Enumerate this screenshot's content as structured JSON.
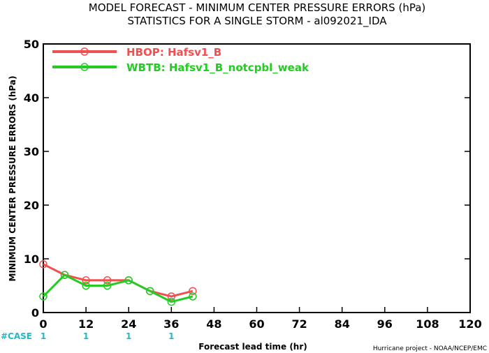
{
  "chart_data": {
    "type": "line",
    "title_line1": "MODEL FORECAST - MINIMUM CENTER PRESSURE ERRORS (hPa)",
    "title_line2": "STATISTICS FOR A SINGLE STORM - al092021_IDA",
    "xlabel": "Forecast lead time (hr)",
    "ylabel": "MINIMUM CENTER PRESSURE ERRORS (hPa)",
    "xlim": [
      0,
      120
    ],
    "ylim": [
      0,
      50
    ],
    "x_ticks": [
      0,
      12,
      24,
      36,
      48,
      60,
      72,
      84,
      96,
      108,
      120
    ],
    "y_ticks": [
      0,
      10,
      20,
      30,
      40,
      50
    ],
    "grid": false,
    "legend_position": "top-left",
    "series": [
      {
        "name": "HBOP: Hafsv1_B",
        "color": "#f05050",
        "x": [
          0,
          6,
          12,
          18,
          24,
          30,
          36,
          42
        ],
        "y": [
          9,
          7,
          6,
          6,
          6,
          4,
          3,
          4
        ]
      },
      {
        "name": "WBTB: Hafsv1_B_notcpbl_weak",
        "color": "#22cc22",
        "x": [
          0,
          6,
          12,
          18,
          24,
          30,
          36,
          42
        ],
        "y": [
          3,
          7,
          5,
          5,
          6,
          4,
          2,
          3
        ]
      }
    ],
    "case_label": "#CASE",
    "case_color": "#22b8c8",
    "cases": [
      {
        "x": 0,
        "count": "1"
      },
      {
        "x": 12,
        "count": "1"
      },
      {
        "x": 24,
        "count": "1"
      },
      {
        "x": 36,
        "count": "1"
      }
    ],
    "credit": "Hurricane project - NOAA/NCEP/EMC"
  }
}
